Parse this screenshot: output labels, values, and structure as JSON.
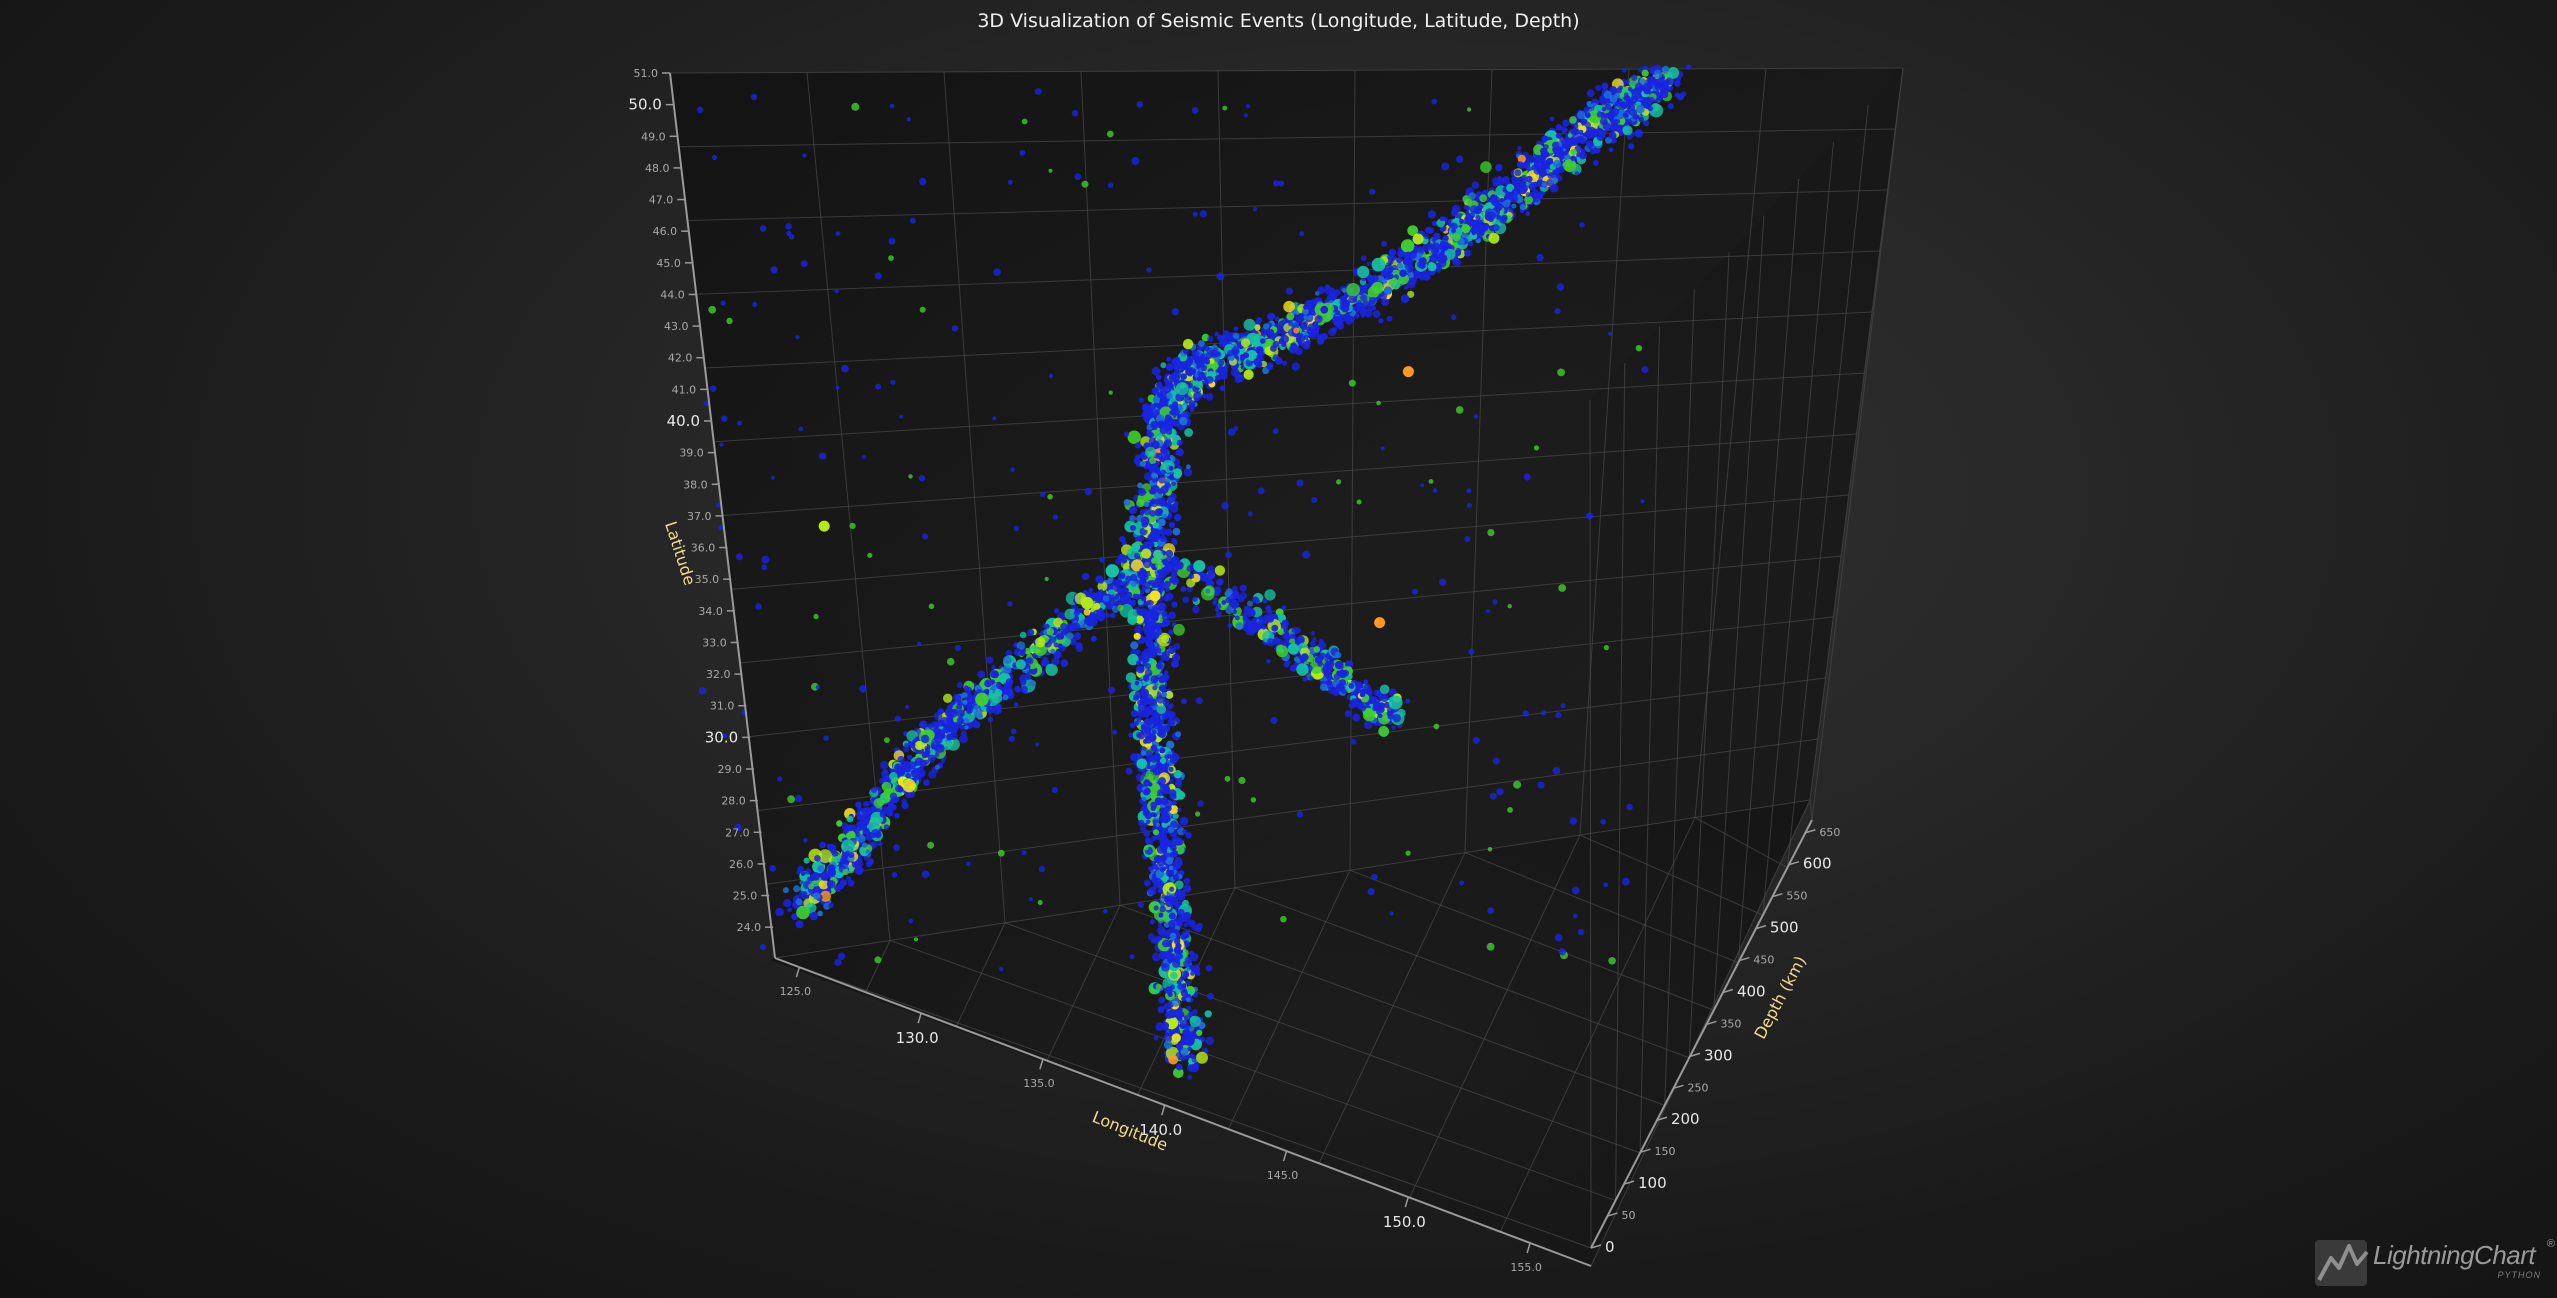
{
  "chart_data": {
    "type": "scatter",
    "dimensions": "3d",
    "title": "3D Visualization of Seismic Events (Longitude, Latitude, Depth)",
    "x_axis": {
      "label": "Longitude",
      "range": [
        124,
        157.5
      ],
      "major_ticks": [
        "130.0",
        "140.0",
        "150.0"
      ],
      "minor_ticks": [
        "125.0",
        "135.0",
        "145.0",
        "155.0"
      ]
    },
    "y_axis": {
      "label": "Latitude",
      "range": [
        23.5,
        51
      ],
      "major_ticks": [
        "30.0",
        "40.0",
        "50.0"
      ],
      "minor_ticks": [
        "24.0",
        "25.0",
        "26.0",
        "27.0",
        "28.0",
        "29.0",
        "31.0",
        "32.0",
        "33.0",
        "34.0",
        "35.0",
        "36.0",
        "37.0",
        "38.0",
        "39.0",
        "41.0",
        "42.0",
        "43.0",
        "44.0",
        "45.0",
        "46.0",
        "47.0",
        "48.0",
        "49.0",
        "51.0"
      ]
    },
    "z_axis": {
      "label": "Depth (km)",
      "range": [
        0,
        670
      ],
      "major_ticks": [
        "0",
        "100",
        "200",
        "300",
        "400",
        "500",
        "600"
      ],
      "minor_ticks": [
        "50",
        "150",
        "250",
        "350",
        "450",
        "550",
        "650"
      ]
    },
    "color_by": "magnitude",
    "color_scale": [
      "#1a24e0",
      "#1f6fd8",
      "#17c2a0",
      "#3ecf2c",
      "#b6ea14",
      "#f5e21a",
      "#ff9a1e",
      "#ff4a1e"
    ],
    "grid": true,
    "clusters": [
      {
        "name": "",
        "points_estimated": 2000,
        "start": {
          "lon": 144.5,
          "lat": 25.5,
          "depth": 40
        },
        "end": {
          "lon": 143.0,
          "lat": 41.0,
          "depth": 60
        }
      },
      {
        "name": "",
        "points_estimated": 1800,
        "start": {
          "lon": 143.0,
          "lat": 41.0,
          "depth": 60
        },
        "end": {
          "lon": 154.5,
          "lat": 51.0,
          "depth": 90
        }
      },
      {
        "name": "",
        "points_estimated": 1200,
        "start": {
          "lon": 125.5,
          "lat": 25.5,
          "depth": 50
        },
        "end": {
          "lon": 139.0,
          "lat": 36.0,
          "depth": 120
        }
      },
      {
        "name": "",
        "points_estimated": 600,
        "start": {
          "lon": 139.5,
          "lat": 36.5,
          "depth": 380
        },
        "end": {
          "lon": 147.0,
          "lat": 33.5,
          "depth": 560
        }
      }
    ],
    "highlighted_events": [
      {
        "lon": 151.5,
        "lat": 50.2,
        "depth": 120,
        "magnitude_color": "#ff9a1e"
      },
      {
        "lon": 147.5,
        "lat": 36.0,
        "depth": 470,
        "magnitude_color": "#ff9a1e"
      },
      {
        "lon": 141.5,
        "lat": 40.2,
        "depth": 70,
        "magnitude_color": "#f5e21a"
      },
      {
        "lon": 128.0,
        "lat": 38.5,
        "depth": 60,
        "magnitude_color": "#b6ea14"
      }
    ]
  },
  "brand": {
    "name": "LightningChart",
    "registered": "®",
    "sub": "PYTHON"
  }
}
